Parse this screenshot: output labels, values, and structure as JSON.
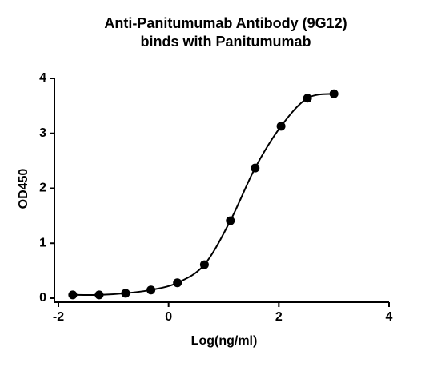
{
  "chart_data": {
    "type": "scatter",
    "title": [
      "Anti-Panitumumab Antibody (9G12)",
      "binds with Panitumumab"
    ],
    "x_label": "Log(ng/ml)",
    "y_label": "OD450",
    "series": [
      {
        "color": "#000000",
        "x": [
          -1.74,
          -1.26,
          -0.78,
          -0.32,
          0.16,
          0.65,
          1.12,
          1.57,
          2.04,
          2.52,
          3.0
        ],
        "values": [
          0.06,
          0.06,
          0.09,
          0.15,
          0.28,
          0.61,
          1.41,
          2.37,
          3.13,
          3.64,
          3.72
        ]
      }
    ],
    "fit_curve": true,
    "xlim": [
      -2,
      4
    ],
    "xticks": [
      -2,
      0,
      2,
      4
    ],
    "ylim": [
      0,
      4
    ],
    "yticks": [
      0,
      1,
      2,
      3,
      4
    ]
  }
}
